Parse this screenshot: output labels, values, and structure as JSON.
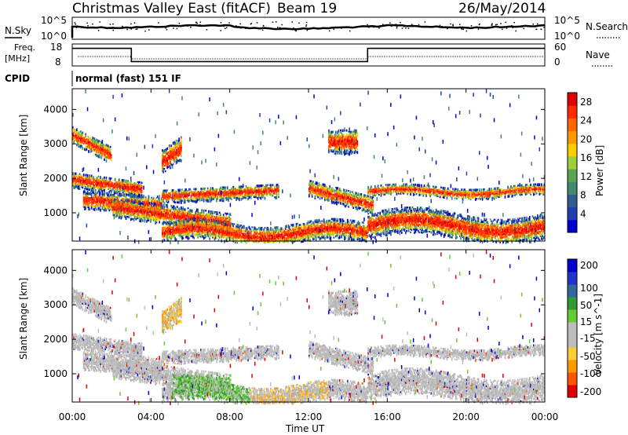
{
  "header": {
    "title": "Christmas Valley East (fitACF)",
    "beam": "Beam 19",
    "date": "26/May/2014"
  },
  "top_panels": {
    "nsky_label": "N.Sky",
    "nsky_ticks": [
      "10^5",
      "10^0"
    ],
    "nsearch_label": "N.Search",
    "nsearch_ticks": [
      "10^5",
      "10^0"
    ],
    "freq_label_1": "Freq.",
    "freq_label_2": "[MHz]",
    "freq_ticks": [
      "18",
      "8"
    ],
    "nave_label": "Nave",
    "nave_ticks": [
      "60",
      "0"
    ],
    "cpid_label": "CPID",
    "cpid_text": "normal (fast) 151 IF"
  },
  "power_panel": {
    "ylabel": "Slant Range [km]",
    "yticks": [
      "4000",
      "3000",
      "2000",
      "1000"
    ],
    "colorbar_label": "Power [dB]",
    "colorbar_ticks": [
      "28",
      "24",
      "20",
      "16",
      "12",
      "8",
      "4"
    ]
  },
  "velocity_panel": {
    "ylabel": "Slant Range [km]",
    "yticks": [
      "4000",
      "3000",
      "2000",
      "1000"
    ],
    "colorbar_label": "Velocity [m s^-1]",
    "colorbar_ticks": [
      "200",
      "100",
      "50",
      "15",
      "-15",
      "-50",
      "-100",
      "-200"
    ]
  },
  "xaxis": {
    "ticks": [
      "00:00",
      "04:00",
      "08:00",
      "12:00",
      "16:00",
      "20:00",
      "00:00"
    ],
    "label": "Time UT"
  },
  "chart_data": [
    {
      "type": "line",
      "panel": "N.Sky / N.Search",
      "y_scale": "log",
      "ylim": [
        1,
        100000
      ],
      "xlim_hours": [
        0,
        24
      ]
    },
    {
      "type": "line",
      "panel": "Freq / Nave",
      "series": [
        {
          "name": "Freq.",
          "x": [
            0,
            3,
            3,
            15,
            15,
            24
          ],
          "values": [
            16,
            16,
            10,
            10,
            16,
            16
          ]
        }
      ],
      "ylim": [
        8,
        18
      ],
      "xlim_hours": [
        0,
        24
      ]
    },
    {
      "type": "heatmap",
      "panel": "Power",
      "x_label": "Time UT",
      "y_label": "Slant Range [km]",
      "ylim_km": [
        180,
        4600
      ],
      "xlim_hours": [
        0,
        24
      ],
      "colorbar": {
        "label": "Power [dB]",
        "range": [
          0,
          30
        ],
        "ticks": [
          4,
          8,
          12,
          16,
          20,
          24,
          28
        ]
      }
    },
    {
      "type": "heatmap",
      "panel": "Velocity",
      "x_label": "Time UT",
      "y_label": "Slant Range [km]",
      "ylim_km": [
        180,
        4600
      ],
      "xlim_hours": [
        0,
        24
      ],
      "colorbar": {
        "label": "Velocity [m s^-1]",
        "ticks": [
          200,
          100,
          50,
          15,
          -15,
          -50,
          -100,
          -200
        ]
      }
    }
  ]
}
